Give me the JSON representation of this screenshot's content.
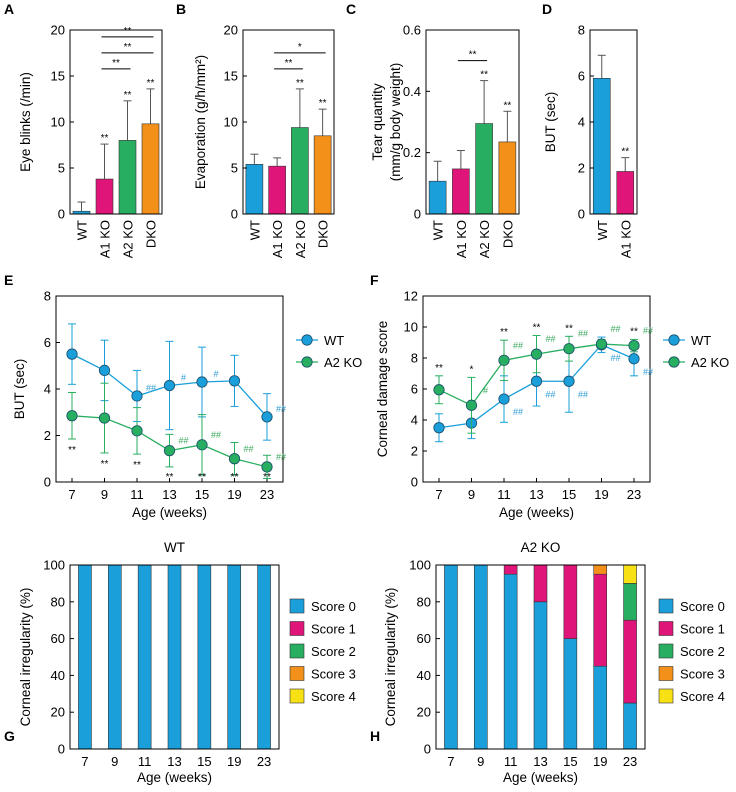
{
  "colors": {
    "blue": "#1a9fdb",
    "magenta": "#e0157a",
    "green": "#27ae60",
    "orange": "#f39019",
    "yellow": "#f7e115",
    "green_hash": "#3aa85e",
    "blue_hash": "#2d9bd6"
  },
  "chart_data": [
    {
      "id": "A",
      "type": "bar",
      "panel_label": "A",
      "ylabel": "Eye blinks (/min)",
      "ylim": [
        0,
        20
      ],
      "yticks": [
        "0",
        "5",
        "10",
        "15",
        "20"
      ],
      "categories": [
        "WT",
        "A1 KO",
        "A2 KO",
        "DKO"
      ],
      "values": [
        0.3,
        3.8,
        8.0,
        9.8
      ],
      "errors": [
        1.0,
        3.8,
        4.3,
        3.8
      ],
      "colors": [
        "#1a9fdb",
        "#e0157a",
        "#27ae60",
        "#f39019"
      ],
      "bar_sig": [
        "",
        "**",
        "**",
        "**"
      ],
      "brackets": [
        {
          "from": 1,
          "to": 2,
          "label": "**"
        },
        {
          "from": 1,
          "to": 3,
          "label": "**"
        },
        {
          "from": 1,
          "to": 3,
          "label": "**",
          "top": true
        }
      ]
    },
    {
      "id": "B",
      "type": "bar",
      "panel_label": "B",
      "ylabel": "Evaporation (g/h/mm²)",
      "ylim": [
        0,
        20
      ],
      "yticks": [
        "0",
        "5",
        "10",
        "15",
        "20"
      ],
      "categories": [
        "WT",
        "A1 KO",
        "A2 KO",
        "DKO"
      ],
      "values": [
        5.4,
        5.2,
        9.4,
        8.5
      ],
      "errors": [
        1.1,
        0.9,
        4.2,
        2.9
      ],
      "colors": [
        "#1a9fdb",
        "#e0157a",
        "#27ae60",
        "#f39019"
      ],
      "bar_sig": [
        "",
        "",
        "**",
        "**"
      ],
      "brackets": [
        {
          "from": 1,
          "to": 2,
          "label": "**"
        },
        {
          "from": 1,
          "to": 3,
          "label": "*"
        }
      ]
    },
    {
      "id": "C",
      "type": "bar",
      "panel_label": "C",
      "ylabel": "Tear quantity",
      "ylabel2": "(mm/g body weight)",
      "ylim": [
        0,
        0.6
      ],
      "yticks": [
        "0",
        "0.2",
        "0.4",
        "0.6"
      ],
      "categories": [
        "WT",
        "A1 KO",
        "A2 KO",
        "DKO"
      ],
      "values": [
        0.107,
        0.147,
        0.295,
        0.235
      ],
      "errors": [
        0.065,
        0.06,
        0.14,
        0.1
      ],
      "colors": [
        "#1a9fdb",
        "#e0157a",
        "#27ae60",
        "#f39019"
      ],
      "bar_sig": [
        "",
        "",
        "**",
        "**"
      ],
      "brackets": [
        {
          "from": 1,
          "to": 2,
          "label": "**"
        }
      ]
    },
    {
      "id": "D",
      "type": "bar",
      "panel_label": "D",
      "ylabel": "BUT (sec)",
      "ylim": [
        0,
        8
      ],
      "yticks": [
        "0",
        "2",
        "4",
        "6",
        "8"
      ],
      "categories": [
        "WT",
        "A1 KO"
      ],
      "values": [
        5.9,
        1.85
      ],
      "errors": [
        1.0,
        0.6
      ],
      "colors": [
        "#1a9fdb",
        "#e0157a"
      ],
      "bar_sig": [
        "",
        "**"
      ],
      "brackets": []
    },
    {
      "id": "E",
      "type": "line",
      "panel_label": "E",
      "ylabel": "BUT (sec)",
      "xlabel": "Age (weeks)",
      "ylim": [
        0,
        8
      ],
      "yticks": [
        "0",
        "2",
        "4",
        "6",
        "8"
      ],
      "x": [
        "7",
        "9",
        "11",
        "13",
        "15",
        "19",
        "23"
      ],
      "series": [
        {
          "name": "WT",
          "color": "#1a9fdb",
          "values": [
            5.5,
            4.8,
            3.7,
            4.15,
            4.3,
            4.35,
            2.8
          ],
          "errors": [
            1.3,
            1.3,
            1.1,
            1.9,
            1.5,
            1.1,
            1.0
          ],
          "marks": [
            "",
            "",
            "##",
            "#",
            "#",
            "",
            "##"
          ]
        },
        {
          "name": "A2 KO",
          "color": "#27ae60",
          "values": [
            2.85,
            2.75,
            2.2,
            1.35,
            1.6,
            1.0,
            0.65
          ],
          "errors": [
            1.0,
            1.5,
            1.0,
            0.7,
            1.3,
            0.7,
            0.5
          ],
          "marks": [
            "",
            "",
            "",
            "##",
            "##",
            "##",
            "##"
          ]
        }
      ],
      "sig": [
        "**",
        "**",
        "**",
        "**",
        "**",
        "**",
        "**"
      ]
    },
    {
      "id": "F",
      "type": "line",
      "panel_label": "F",
      "ylabel": "Corneal damage score",
      "xlabel": "Age (weeks)",
      "ylim": [
        0,
        12
      ],
      "yticks": [
        "0",
        "2",
        "4",
        "6",
        "8",
        "10",
        "12"
      ],
      "x": [
        "7",
        "9",
        "11",
        "13",
        "15",
        "19",
        "23"
      ],
      "series": [
        {
          "name": "WT",
          "color": "#1a9fdb",
          "values": [
            3.5,
            3.8,
            5.35,
            6.5,
            6.5,
            8.85,
            7.95
          ],
          "errors": [
            0.9,
            1.0,
            1.5,
            1.6,
            2.0,
            0.5,
            1.1
          ],
          "marks": [
            "",
            "",
            "##",
            "##",
            "##",
            "##",
            "##"
          ]
        },
        {
          "name": "A2 KO",
          "color": "#27ae60",
          "values": [
            5.95,
            4.95,
            7.85,
            8.25,
            8.6,
            8.9,
            8.8
          ],
          "errors": [
            0.9,
            1.8,
            1.3,
            1.2,
            0.8,
            0.3,
            0.4
          ],
          "marks": [
            "",
            "#",
            "##",
            "##",
            "##",
            "##",
            "##"
          ]
        }
      ],
      "sig": [
        "**",
        "*",
        "**",
        "**",
        "**",
        "",
        "**"
      ]
    },
    {
      "id": "G",
      "type": "stacked_bar",
      "panel_label": "G",
      "title": "WT",
      "ylabel": "Corneal irregularity (%)",
      "xlabel": "Age (weeks)",
      "ylim": [
        0,
        100
      ],
      "yticks": [
        "0",
        "20",
        "40",
        "60",
        "80",
        "100"
      ],
      "categories": [
        "7",
        "9",
        "11",
        "13",
        "15",
        "19",
        "23"
      ],
      "series": [
        {
          "name": "Score 0",
          "color": "#1a9fdb",
          "values": [
            100,
            100,
            100,
            100,
            100,
            100,
            100
          ]
        },
        {
          "name": "Score 1",
          "color": "#e0157a",
          "values": [
            0,
            0,
            0,
            0,
            0,
            0,
            0
          ]
        },
        {
          "name": "Score 2",
          "color": "#27ae60",
          "values": [
            0,
            0,
            0,
            0,
            0,
            0,
            0
          ]
        },
        {
          "name": "Score 3",
          "color": "#f39019",
          "values": [
            0,
            0,
            0,
            0,
            0,
            0,
            0
          ]
        },
        {
          "name": "Score 4",
          "color": "#f7e115",
          "values": [
            0,
            0,
            0,
            0,
            0,
            0,
            0
          ]
        }
      ]
    },
    {
      "id": "H",
      "type": "stacked_bar",
      "panel_label": "H",
      "title": "A2 KO",
      "ylabel": "Corneal irregularity (%)",
      "xlabel": "Age (weeks)",
      "ylim": [
        0,
        100
      ],
      "yticks": [
        "0",
        "20",
        "40",
        "60",
        "80",
        "100"
      ],
      "categories": [
        "7",
        "9",
        "11",
        "13",
        "15",
        "19",
        "23"
      ],
      "series": [
        {
          "name": "Score 0",
          "color": "#1a9fdb",
          "values": [
            100,
            100,
            95,
            80,
            60,
            45,
            25
          ]
        },
        {
          "name": "Score 1",
          "color": "#e0157a",
          "values": [
            0,
            0,
            5,
            20,
            40,
            50,
            45
          ]
        },
        {
          "name": "Score 2",
          "color": "#27ae60",
          "values": [
            0,
            0,
            0,
            0,
            0,
            0,
            20
          ]
        },
        {
          "name": "Score 3",
          "color": "#f39019",
          "values": [
            0,
            0,
            0,
            0,
            0,
            5,
            0
          ]
        },
        {
          "name": "Score 4",
          "color": "#f7e115",
          "values": [
            0,
            0,
            0,
            0,
            0,
            0,
            10
          ]
        }
      ]
    }
  ]
}
